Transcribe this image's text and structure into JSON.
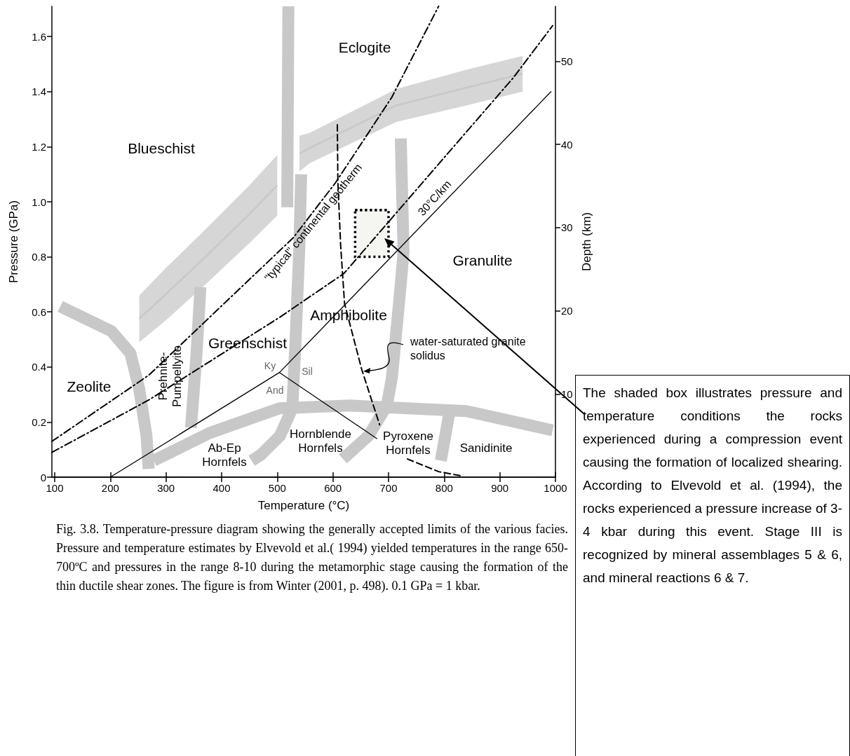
{
  "chart_data": {
    "type": "line",
    "xlabel": "Temperature (°C)",
    "ylabel": "Pressure (GPa)",
    "y2label": "Depth (km)",
    "xlim": [
      95,
      1000
    ],
    "xticks": [
      100,
      200,
      300,
      400,
      500,
      600,
      700,
      800,
      900,
      1000
    ],
    "ylim": [
      0,
      1.71
    ],
    "yticks": [
      0,
      0.2,
      0.4,
      0.6,
      0.8,
      {
        "value": 1,
        "label": "1.0"
      },
      1.2,
      1.4,
      1.6
    ],
    "y2lim": [
      0,
      56.6
    ],
    "y2ticks": [
      10,
      20,
      30,
      40,
      50
    ],
    "grid": false,
    "marker": "none",
    "series": [
      {
        "color": "#c8c8c8",
        "x": [
          110,
          202,
          236,
          252,
          265,
          269
        ],
        "values": [
          0.62,
          0.53,
          0.45,
          0.32,
          0.15,
          0.03
        ]
      },
      {
        "color": "#c8c8c8",
        "x": [
          252,
          300,
          366,
          450,
          500
        ],
        "values": [
          0.575,
          0.665,
          0.79,
          0.955,
          1.06
        ],
        "lower": [
          0.49,
          0.57,
          0.69,
          0.85,
          0.95
        ],
        "upper": [
          0.66,
          0.76,
          0.89,
          1.06,
          1.17
        ]
      },
      {
        "color": "#c8c8c8",
        "x": [
          518,
          520
        ],
        "values": [
          0.98,
          1.71
        ]
      },
      {
        "color": "#c8c8c8",
        "x": [
          540,
          558,
          714,
          840,
          941
        ],
        "values": [
          1.175,
          1.195,
          1.35,
          1.415,
          1.465
        ],
        "lower": [
          1.11,
          1.14,
          1.29,
          1.35,
          1.4
        ],
        "upper": [
          1.24,
          1.25,
          1.41,
          1.48,
          1.53
        ]
      },
      {
        "color": "#c8c8c8",
        "x": [
          362,
          355,
          345
        ],
        "values": [
          0.69,
          0.45,
          0.18
        ]
      },
      {
        "color": "#c8c8c8",
        "x": [
          543,
          540,
          533,
          527,
          505,
          470,
          454
        ],
        "values": [
          1.1,
          0.85,
          0.5,
          0.25,
          0.15,
          0.08,
          0.06
        ]
      },
      {
        "color": "#c8c8c8",
        "x": [
          722,
          727,
          722,
          706,
          697,
          664,
          618
        ],
        "values": [
          1.23,
          0.82,
          0.7,
          0.36,
          0.26,
          0.15,
          0.066
        ]
      },
      {
        "color": "#c8c8c8",
        "x": [
          809,
          794
        ],
        "values": [
          0.23,
          0.06
        ]
      },
      {
        "color": "#c8c8c8",
        "x": [
          278,
          378,
          504,
          630,
          840,
          995
        ],
        "values": [
          0.06,
          0.16,
          0.25,
          0.26,
          0.24,
          0.17
        ]
      },
      {
        "color": "#000000",
        "line_style": "dashdot",
        "x": [
          95,
          269,
          529,
          605,
          706,
          790
        ],
        "values": [
          0.13,
          0.37,
          0.87,
          1.07,
          1.38,
          1.71
        ]
      },
      {
        "color": "#000000",
        "line_style": "dashdot",
        "x": [
          95,
          269,
          504,
          620,
          727,
          924,
          995
        ],
        "values": [
          0.09,
          0.28,
          0.58,
          0.74,
          0.99,
          1.45,
          1.64
        ]
      },
      {
        "color": "#000000",
        "line_style": "solid",
        "x": [
          200,
          504,
          992
        ],
        "values": [
          0,
          0.38,
          1.4
        ]
      },
      {
        "color": "#000000",
        "line_style": "solid",
        "x": [
          504,
          679
        ],
        "values": [
          0.38,
          0.14
        ]
      },
      {
        "color": "#000000",
        "line_style": "dashed",
        "x": [
          608,
          609,
          614,
          621,
          652,
          684
        ],
        "values": [
          1.28,
          1.07,
          0.84,
          0.63,
          0.39,
          0.19
        ]
      },
      {
        "color": "#000000",
        "line_style": "dashed",
        "x": [
          734,
          790,
          830
        ],
        "values": [
          0.066,
          0.02,
          0.005
        ]
      },
      {
        "color": "#000000",
        "line_style": "dotted",
        "x": [
          640,
          700
        ],
        "values": [
          0.97,
          0.97
        ],
        "lower": [
          0.8,
          0.8
        ],
        "upper": [
          0.97,
          0.97
        ]
      }
    ],
    "annotations": [
      "Eclogite",
      "Blueschist",
      "Granulite",
      "Amphibolite",
      "Greenschist",
      "Zeolite",
      "Prehnite-Pumpellyite",
      "Ab-Ep Hornfels",
      "Hornblende Hornfels",
      "Pyroxene Hornfels",
      "Sanidinite",
      "Ky",
      "And",
      "Sil",
      "\"typical\" continental geotherm",
      "30°C/km",
      "water-saturated granite solidus",
      "The shaded box illustrates pressure and temperature conditions the rocks experienced during a compression event causing the formation of localized shearing. According to Elvevold et al. (1994), the rocks experienced a pressure increase of 3-4 kbar during this event. Stage III is recognized by mineral assemblages 5 & 6, and mineral reactions 6 & 7.",
      "Fig. 3.8. Temperature-pressure diagram showing the generally accepted limits of the various facies. Pressure and temperature estimates by Elvevold et al.( 1994) yielded temperatures in the range 650-700ºC and pressures in the range 8-10 during the metamorphic stage causing the formation of the thin ductile shear zones. The figure is from Winter (2001, p. 498). 0.1 GPa = 1 kbar."
    ]
  }
}
